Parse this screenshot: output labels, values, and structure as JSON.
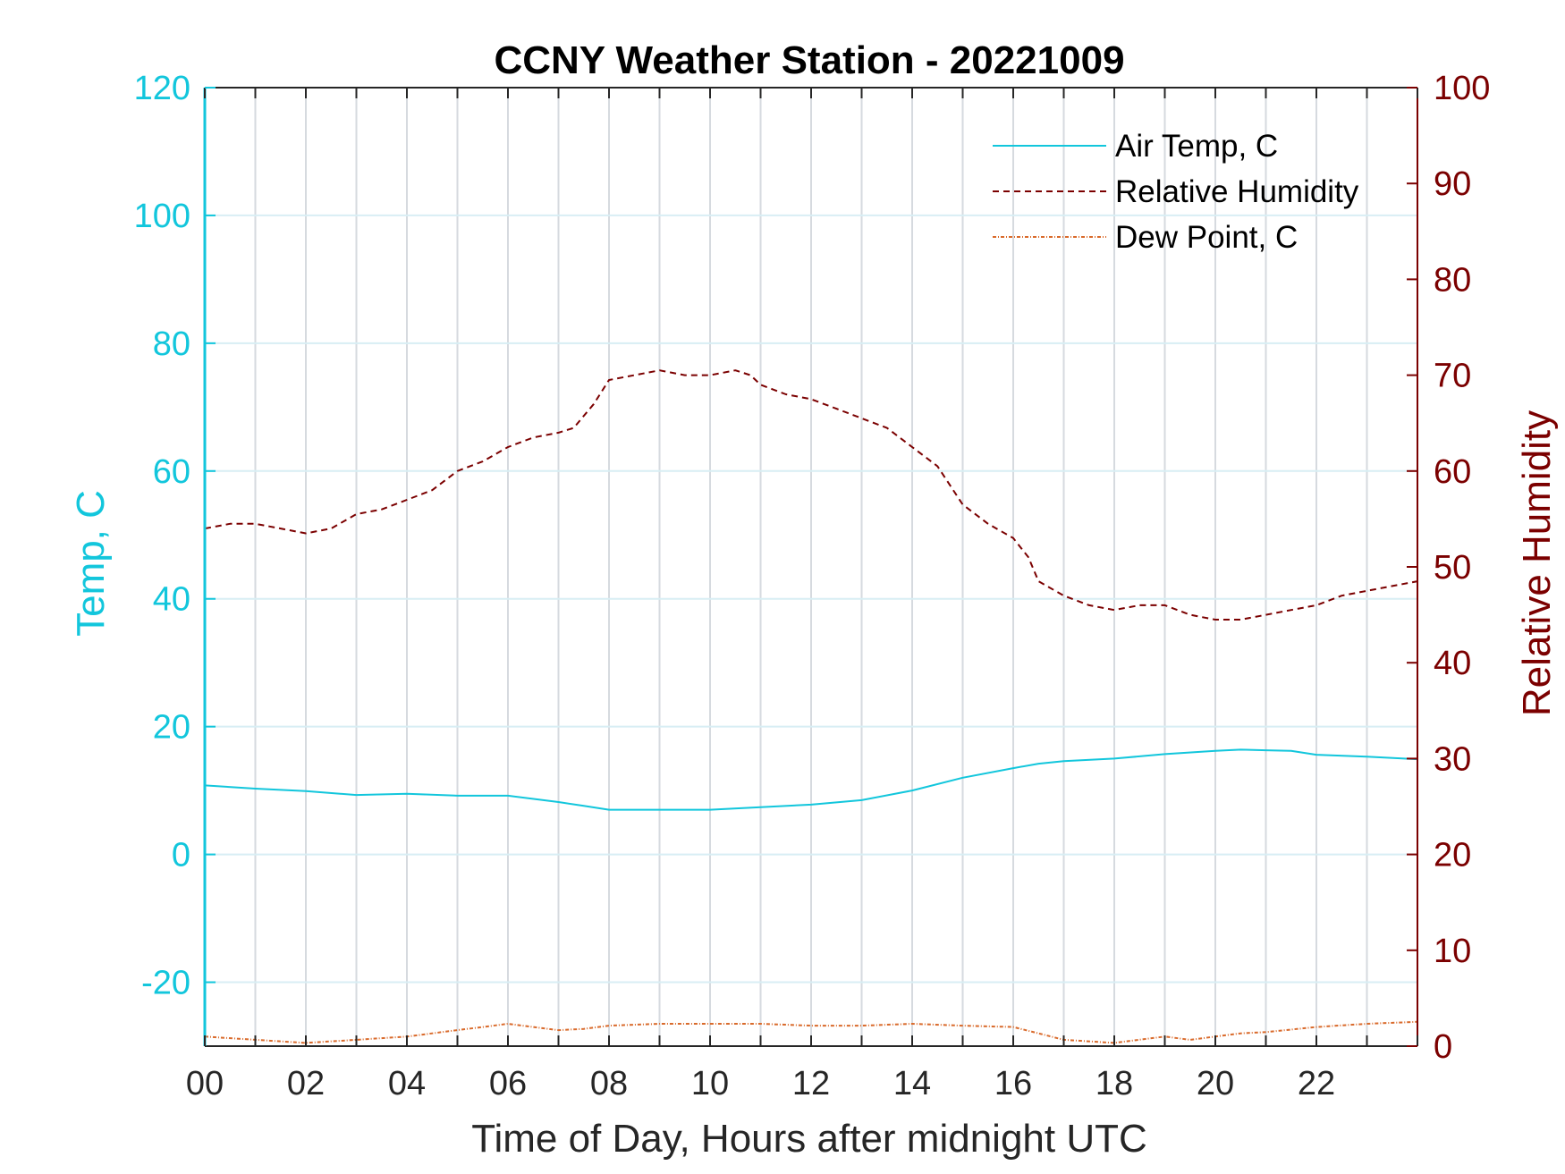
{
  "chart_data": {
    "type": "line",
    "title": "CCNY Weather Station - 20221009",
    "xlabel": "Time of Day, Hours after midnight UTC",
    "ylabel_left": "Temp, C",
    "ylabel_right": "Relative Humidity",
    "xlim": [
      0,
      24
    ],
    "ylim_left": [
      -30,
      120
    ],
    "ylim_right": [
      0,
      100
    ],
    "x_ticks": [
      0,
      2,
      4,
      6,
      8,
      10,
      12,
      14,
      16,
      18,
      20,
      22
    ],
    "x_tick_labels": [
      "00",
      "02",
      "04",
      "06",
      "08",
      "10",
      "12",
      "14",
      "16",
      "18",
      "20",
      "22"
    ],
    "y_left_ticks": [
      -20,
      0,
      20,
      40,
      60,
      80,
      100,
      120
    ],
    "y_right_ticks": [
      0,
      10,
      20,
      30,
      40,
      50,
      60,
      70,
      80,
      90,
      100
    ],
    "grid": {
      "vertical": "every hour",
      "horizontal": "left-axis ticks"
    },
    "legend_position": "top-right",
    "series": [
      {
        "name": "Air Temp, C",
        "axis": "left",
        "color": "#12c6dc",
        "style": "solid",
        "x": [
          0,
          1,
          2,
          3,
          4,
          5,
          6,
          7,
          7.5,
          8,
          9,
          10,
          11,
          12,
          13,
          14,
          15,
          16,
          16.5,
          17,
          18,
          19,
          20,
          20.5,
          21,
          21.5,
          22,
          23,
          24
        ],
        "values": [
          10.8,
          10.3,
          9.9,
          9.3,
          9.5,
          9.2,
          9.2,
          8.2,
          7.6,
          7.0,
          7.0,
          7.0,
          7.4,
          7.8,
          8.5,
          10.0,
          12.0,
          13.5,
          14.2,
          14.6,
          15.0,
          15.7,
          16.2,
          16.4,
          16.3,
          16.2,
          15.6,
          15.3,
          14.9
        ]
      },
      {
        "name": "Relative Humidity",
        "axis": "right",
        "color": "#7b0000",
        "style": "dashed",
        "x": [
          0,
          0.5,
          1,
          1.5,
          2,
          2.5,
          3,
          3.5,
          4,
          4.5,
          5,
          5.5,
          6,
          6.5,
          7,
          7.3,
          7.7,
          8,
          8.5,
          9,
          9.5,
          10,
          10.5,
          10.8,
          11,
          11.5,
          12,
          12.5,
          13,
          13.5,
          14,
          14.5,
          15,
          15.5,
          16,
          16.3,
          16.5,
          17,
          17.5,
          18,
          18.5,
          19,
          19.5,
          20,
          20.5,
          21,
          21.5,
          22,
          22.5,
          23,
          23.5,
          24
        ],
        "values": [
          54,
          54.5,
          54.5,
          54,
          53.5,
          54,
          55.5,
          56,
          57,
          58,
          60,
          61,
          62.5,
          63.5,
          64,
          64.5,
          67,
          69.5,
          70,
          70.5,
          70,
          70,
          70.5,
          70,
          69,
          68,
          67.5,
          66.5,
          65.5,
          64.5,
          62.5,
          60.5,
          56.5,
          54.5,
          53,
          51,
          48.5,
          47,
          46,
          45.5,
          46,
          46,
          45,
          44.5,
          44.5,
          45,
          45.5,
          46,
          47,
          47.5,
          48,
          48.5
        ]
      },
      {
        "name": "Dew Point, C",
        "axis": "left",
        "color": "#d96a2b",
        "style": "dash-dot",
        "x": [
          0,
          1,
          2,
          3,
          4,
          5,
          5.5,
          6,
          6.5,
          7,
          7.5,
          8,
          9,
          10,
          11,
          12,
          13,
          14,
          15,
          16,
          16.5,
          17,
          18,
          19,
          19.5,
          20,
          20.5,
          21,
          22,
          23,
          24
        ],
        "values": [
          -28.5,
          -29,
          -29.5,
          -29,
          -28.5,
          -27.5,
          -27,
          -26.5,
          -27,
          -27.5,
          -27.3,
          -26.8,
          -26.5,
          -26.5,
          -26.5,
          -26.8,
          -26.8,
          -26.5,
          -26.8,
          -27,
          -28,
          -29,
          -29.5,
          -28.5,
          -29,
          -28.5,
          -28,
          -27.8,
          -27,
          -26.5,
          -26.2
        ]
      }
    ]
  }
}
